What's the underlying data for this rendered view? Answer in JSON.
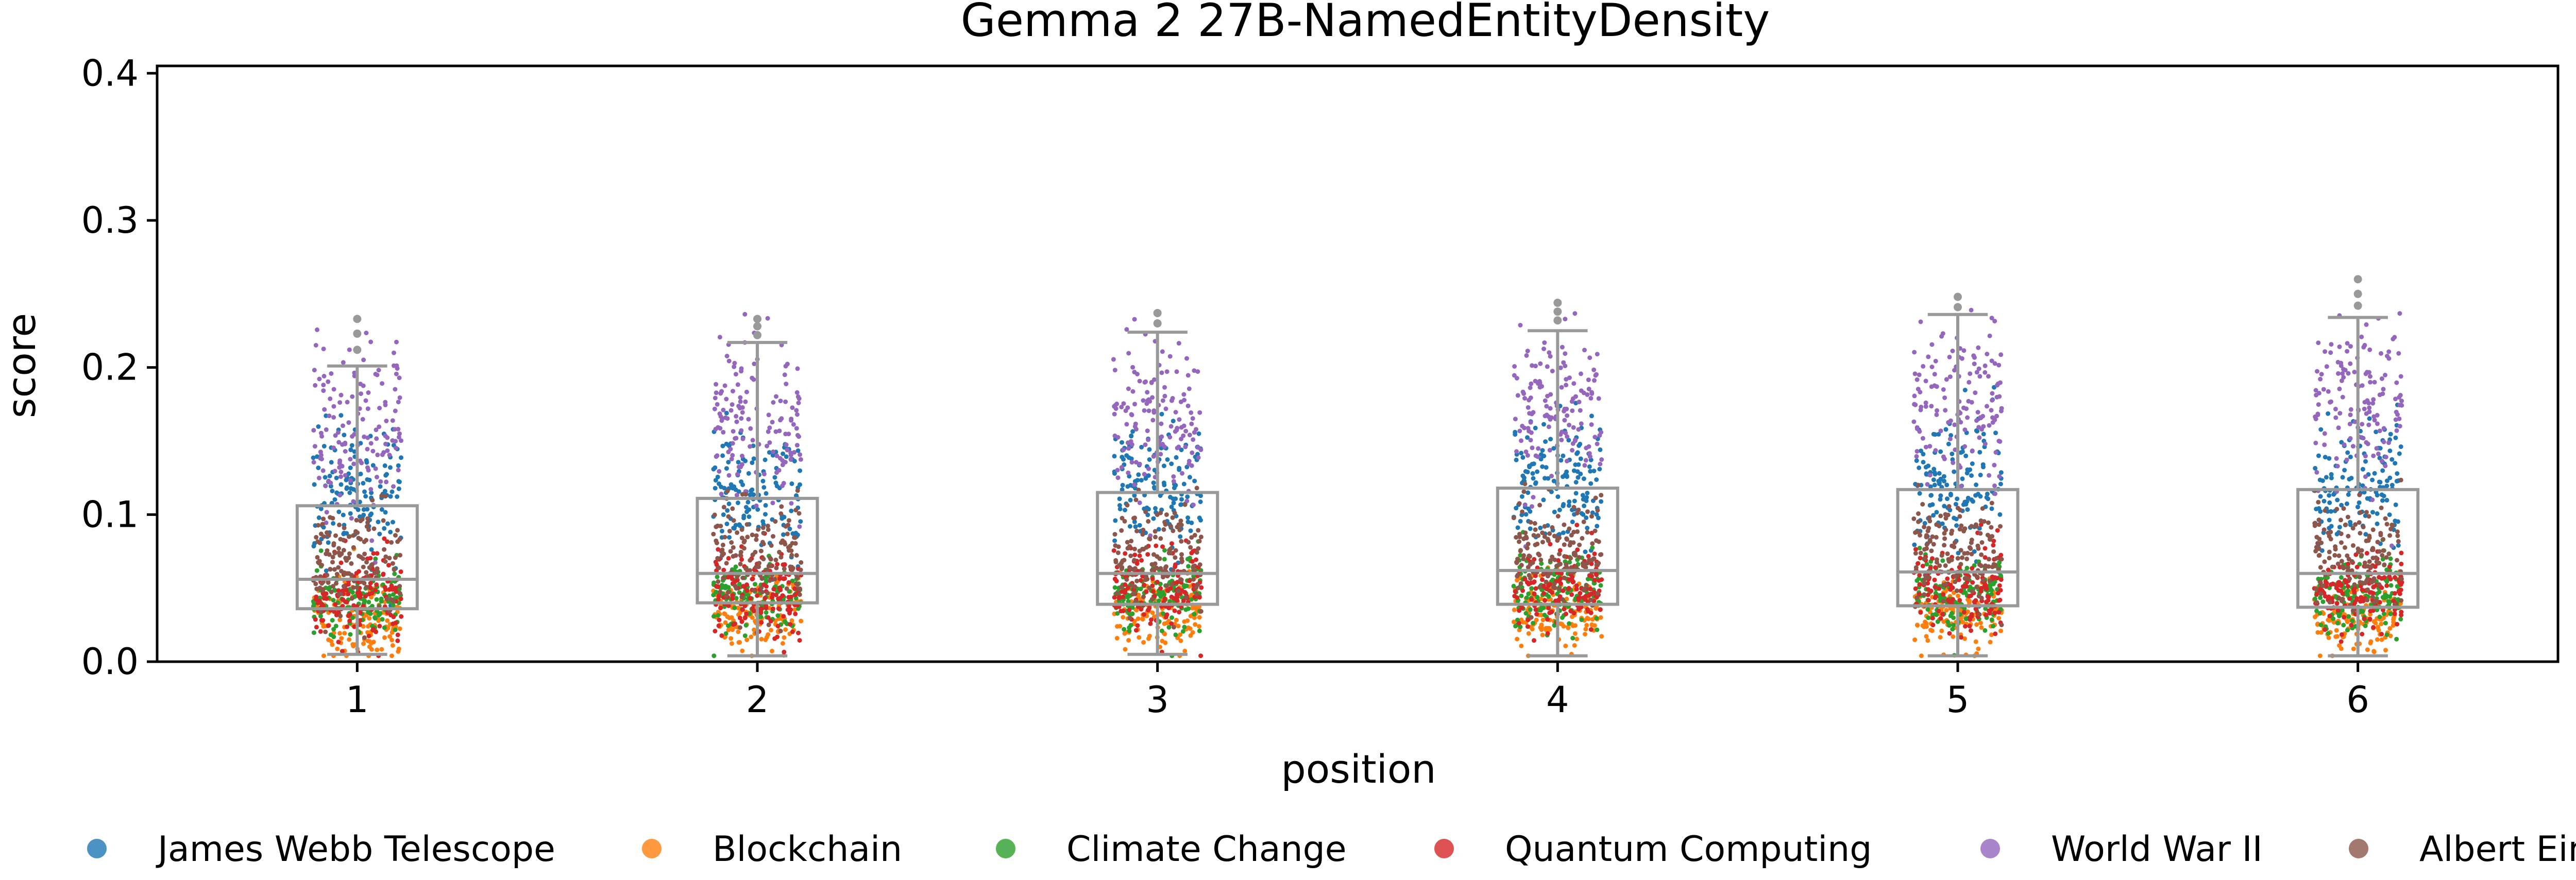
{
  "chart_data": {
    "type": "scatter",
    "title": "Gemma 2 27B-NamedEntityDensity",
    "xlabel": "position",
    "ylabel": "score",
    "ylim": [
      0,
      0.405
    ],
    "xlim": [
      0.5,
      6.5
    ],
    "x_ticks": [
      "1",
      "2",
      "3",
      "4",
      "5",
      "6"
    ],
    "y_ticks": [
      "0.0",
      "0.1",
      "0.2",
      "0.3",
      "0.4"
    ],
    "grid": false,
    "legend_position": "bottom",
    "boxplot_color": "#999999",
    "boxplots": [
      {
        "position": 1,
        "whisker_low": 0.005,
        "q1": 0.036,
        "median": 0.056,
        "q3": 0.106,
        "whisker_high": 0.201,
        "fliers": [
          0.212,
          0.223,
          0.233
        ]
      },
      {
        "position": 2,
        "whisker_low": 0.004,
        "q1": 0.04,
        "median": 0.06,
        "q3": 0.111,
        "whisker_high": 0.217,
        "fliers": [
          0.222,
          0.228,
          0.233
        ]
      },
      {
        "position": 3,
        "whisker_low": 0.005,
        "q1": 0.039,
        "median": 0.06,
        "q3": 0.115,
        "whisker_high": 0.224,
        "fliers": [
          0.23,
          0.237
        ]
      },
      {
        "position": 4,
        "whisker_low": 0.004,
        "q1": 0.039,
        "median": 0.062,
        "q3": 0.118,
        "whisker_high": 0.225,
        "fliers": [
          0.232,
          0.238,
          0.244
        ]
      },
      {
        "position": 5,
        "whisker_low": 0.004,
        "q1": 0.038,
        "median": 0.061,
        "q3": 0.117,
        "whisker_high": 0.236,
        "fliers": [
          0.241,
          0.248
        ]
      },
      {
        "position": 6,
        "whisker_low": 0.004,
        "q1": 0.037,
        "median": 0.06,
        "q3": 0.117,
        "whisker_high": 0.234,
        "fliers": [
          0.242,
          0.25,
          0.26
        ]
      }
    ],
    "series": [
      {
        "name": "James Webb Telescope",
        "color": "#1f77b4",
        "mean": [
          0.115,
          0.118,
          0.12,
          0.122,
          0.12,
          0.121
        ],
        "spread": 0.022
      },
      {
        "name": "Blockchain",
        "color": "#ff7f0e",
        "mean": [
          0.03,
          0.032,
          0.032,
          0.033,
          0.032,
          0.03
        ],
        "spread": 0.012
      },
      {
        "name": "Climate Change",
        "color": "#2ca02c",
        "mean": [
          0.042,
          0.045,
          0.046,
          0.047,
          0.046,
          0.045
        ],
        "spread": 0.013
      },
      {
        "name": "Quantum Computing",
        "color": "#d62728",
        "mean": [
          0.045,
          0.048,
          0.049,
          0.05,
          0.049,
          0.048
        ],
        "spread": 0.014
      },
      {
        "name": "World War II",
        "color": "#9467bd",
        "mean": [
          0.16,
          0.165,
          0.17,
          0.172,
          0.175,
          0.175
        ],
        "spread": 0.028
      },
      {
        "name": "Albert Einstein",
        "color": "#8c564b",
        "mean": [
          0.07,
          0.072,
          0.074,
          0.075,
          0.074,
          0.073
        ],
        "spread": 0.018
      }
    ]
  }
}
